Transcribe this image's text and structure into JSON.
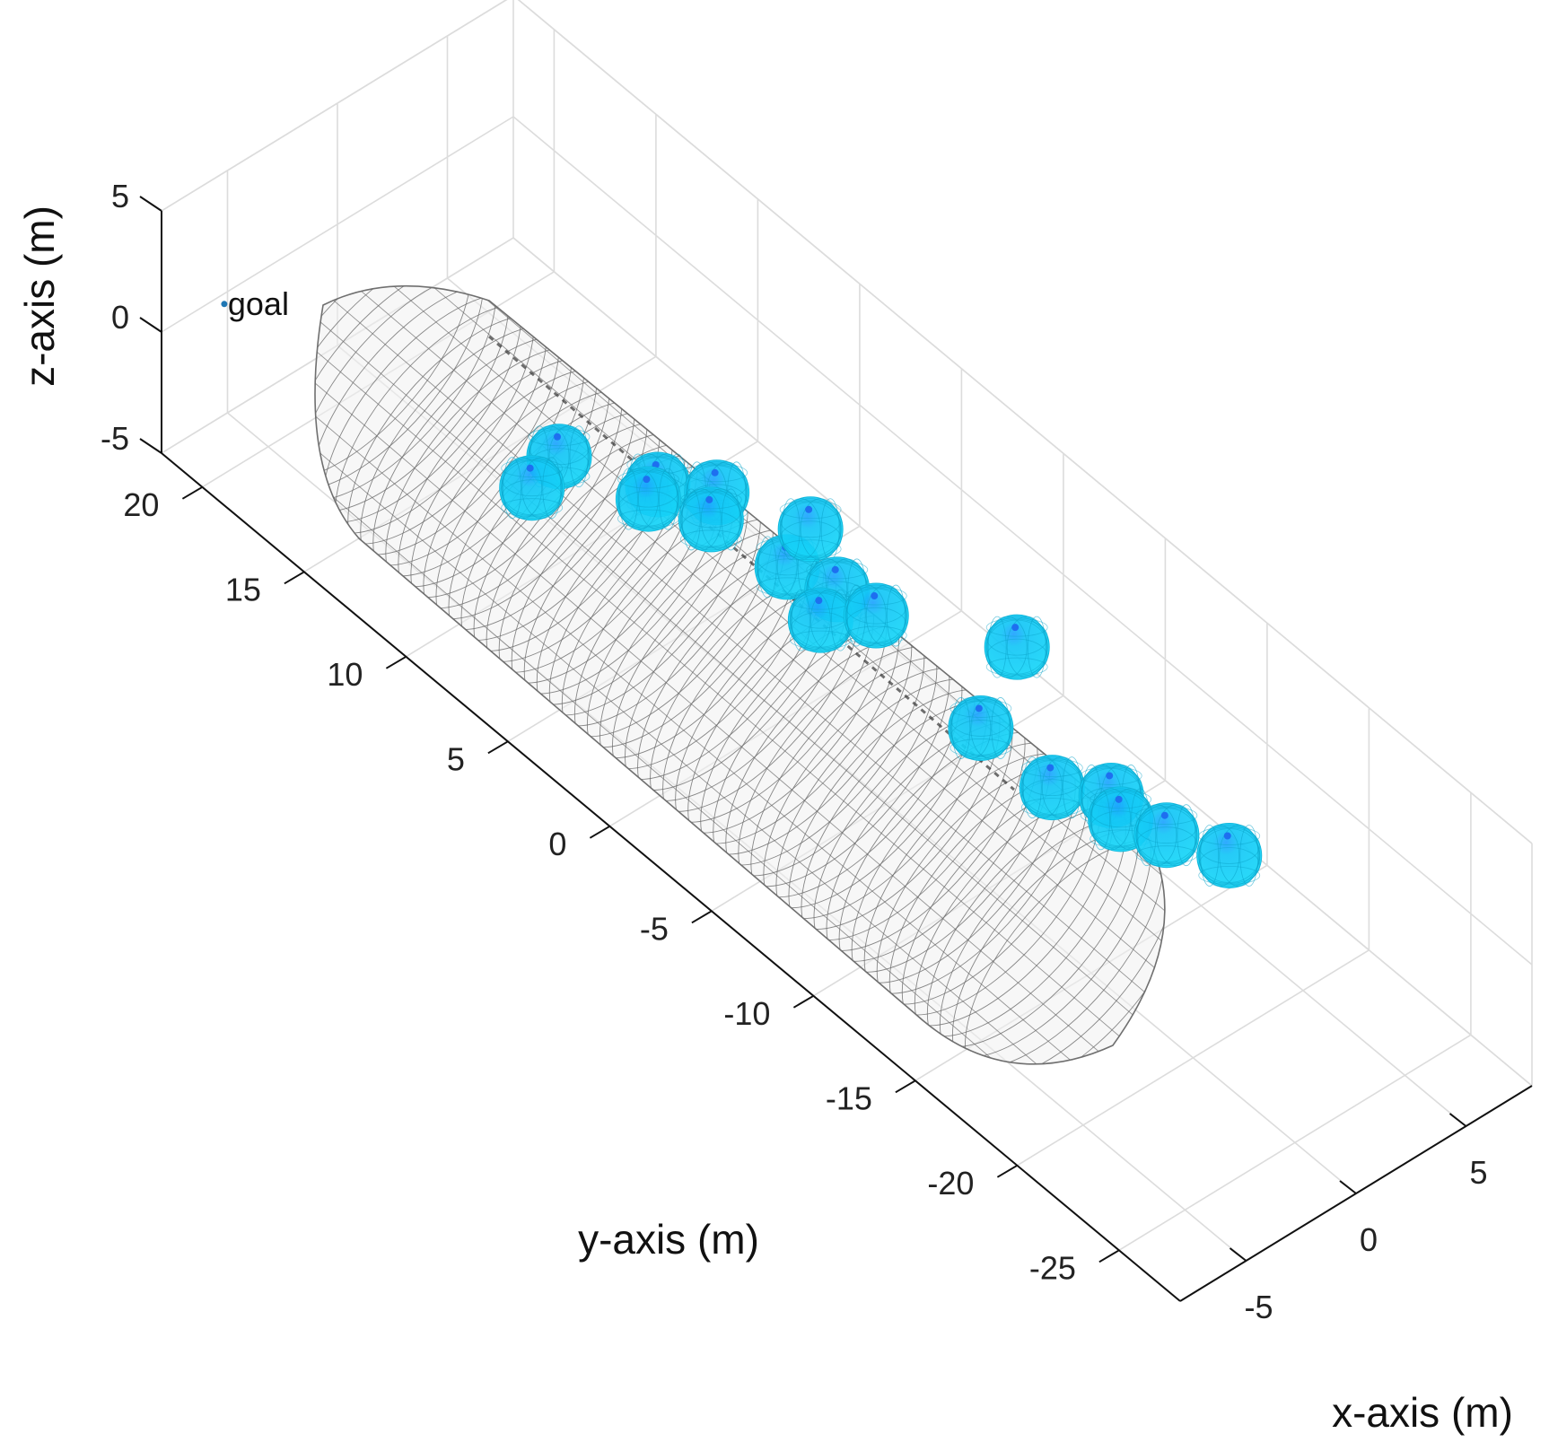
{
  "chart_data": {
    "type": "scatter",
    "title": "",
    "xlabel": "x-axis (m)",
    "ylabel": "y-axis (m)",
    "zlabel": "z-axis (m)",
    "x_ticks": [
      "-5",
      "0",
      "5"
    ],
    "y_ticks": [
      "20",
      "15",
      "10",
      "5",
      "0",
      "-5",
      "-10",
      "-15",
      "-20",
      "-25"
    ],
    "z_ticks": [
      "5",
      "0",
      "-5"
    ],
    "xlim": [
      -8,
      8
    ],
    "ylim": [
      -28,
      22
    ],
    "zlim": [
      -5,
      5
    ],
    "grid": true,
    "goal": {
      "label": "goal",
      "x": -7,
      "y": 20,
      "z": 2
    },
    "capsule": {
      "shape": "wireframe capsule",
      "color": "#7a7a7a"
    },
    "spheres": {
      "color": "#00d5f0",
      "points": [
        {
          "x": -1.5,
          "y": 9.5,
          "z": 0
        },
        {
          "x": -3.2,
          "y": 9.0,
          "z": 0
        },
        {
          "x": 0.2,
          "y": 6.5,
          "z": 0
        },
        {
          "x": 1.5,
          "y": 5.0,
          "z": 0
        },
        {
          "x": 0.5,
          "y": 4.2,
          "z": 0
        },
        {
          "x": -0.5,
          "y": 6.2,
          "z": 0
        },
        {
          "x": 1.0,
          "y": 1.0,
          "z": 0
        },
        {
          "x": 2.8,
          "y": 1.8,
          "z": 0
        },
        {
          "x": 1.6,
          "y": -0.8,
          "z": 0
        },
        {
          "x": 0.2,
          "y": -1.5,
          "z": 0
        },
        {
          "x": 1.8,
          "y": -2.5,
          "z": 0
        },
        {
          "x": 4.5,
          "y": -6.5,
          "z": 0
        },
        {
          "x": 1.0,
          "y": -8.5,
          "z": 0
        },
        {
          "x": 1.0,
          "y": -12.0,
          "z": 0
        },
        {
          "x": 2.3,
          "y": -13.5,
          "z": 0
        },
        {
          "x": 1.8,
          "y": -14.5,
          "z": 0
        },
        {
          "x": 2.5,
          "y": -16.0,
          "z": 0
        },
        {
          "x": 3.5,
          "y": -18.0,
          "z": 0
        }
      ]
    }
  }
}
